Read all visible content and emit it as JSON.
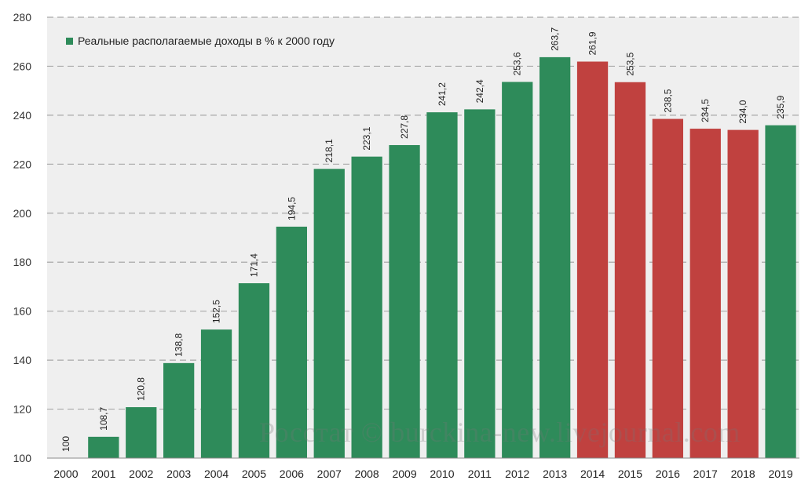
{
  "chart_data": {
    "type": "bar",
    "legend": "Реальные располагаемые доходы в % к 2000 году",
    "legend_placement": "top-left",
    "categories": [
      "2000",
      "2001",
      "2002",
      "2003",
      "2004",
      "2005",
      "2006",
      "2007",
      "2008",
      "2009",
      "2010",
      "2011",
      "2012",
      "2013",
      "2014",
      "2015",
      "2016",
      "2017",
      "2018",
      "2019"
    ],
    "values": [
      100,
      108.7,
      120.8,
      138.8,
      152.5,
      171.4,
      194.5,
      218.1,
      223.1,
      227.8,
      241.2,
      242.4,
      253.6,
      263.7,
      261.9,
      253.5,
      238.5,
      234.5,
      234.0,
      235.9
    ],
    "value_labels": [
      "100",
      "108,7",
      "120,8",
      "138,8",
      "152,5",
      "171,4",
      "194,5",
      "218,1",
      "223,1",
      "227,8",
      "241,2",
      "242,4",
      "253,6",
      "263,7",
      "261,9",
      "253,5",
      "238,5",
      "234,5",
      "234,0",
      "235,9"
    ],
    "bar_colors": [
      "#2e8b5a",
      "#2e8b5a",
      "#2e8b5a",
      "#2e8b5a",
      "#2e8b5a",
      "#2e8b5a",
      "#2e8b5a",
      "#2e8b5a",
      "#2e8b5a",
      "#2e8b5a",
      "#2e8b5a",
      "#2e8b5a",
      "#2e8b5a",
      "#2e8b5a",
      "#c0413f",
      "#c0413f",
      "#c0413f",
      "#c0413f",
      "#c0413f",
      "#2e8b5a"
    ],
    "colors": {
      "growth": "#2e8b5a",
      "decline": "#c0413f",
      "plot_bg": "#efefef",
      "grid": "#a9a9a9"
    },
    "ylim": [
      100,
      280
    ],
    "yticks": [
      100,
      120,
      140,
      160,
      180,
      200,
      220,
      240,
      260,
      280
    ],
    "grid": true,
    "title": "",
    "xlabel": "",
    "ylabel": ""
  },
  "watermark": "Росстат © burckina-new.livejournal.com"
}
